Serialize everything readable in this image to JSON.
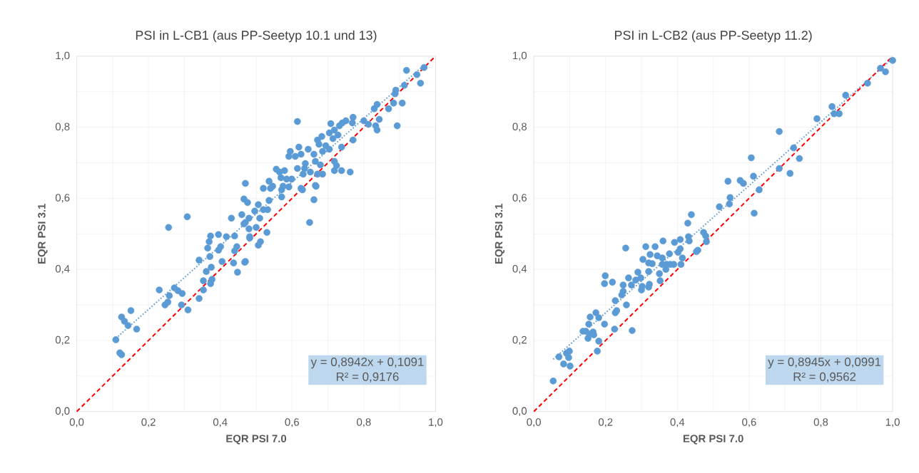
{
  "chart_data": [
    {
      "type": "scatter",
      "title": "PSI in L-CB1 (aus PP-Seetyp 10.1 und 13)",
      "xlabel": "EQR PSI 7.0",
      "ylabel": "EQR PSI 3.1",
      "xlim": [
        0,
        1
      ],
      "ylim": [
        0,
        1
      ],
      "xticks": [
        {
          "value": 0,
          "label": "0,0"
        },
        {
          "value": 0.1,
          "label": null
        },
        {
          "value": 0.2,
          "label": "0,2"
        },
        {
          "value": 0.3,
          "label": null
        },
        {
          "value": 0.4,
          "label": "0,4"
        },
        {
          "value": 0.5,
          "label": null
        },
        {
          "value": 0.6,
          "label": "0,6"
        },
        {
          "value": 0.7,
          "label": null
        },
        {
          "value": 0.8,
          "label": "0,8"
        },
        {
          "value": 0.9,
          "label": null
        },
        {
          "value": 1,
          "label": "1,0"
        }
      ],
      "yticks": [
        {
          "value": 0,
          "label": "0,0"
        },
        {
          "value": 0.1,
          "label": null
        },
        {
          "value": 0.2,
          "label": "0,2"
        },
        {
          "value": 0.3,
          "label": null
        },
        {
          "value": 0.4,
          "label": "0,4"
        },
        {
          "value": 0.5,
          "label": null
        },
        {
          "value": 0.6,
          "label": "0,6"
        },
        {
          "value": 0.7,
          "label": null
        },
        {
          "value": 0.8,
          "label": "0,8"
        },
        {
          "value": 0.9,
          "label": null
        },
        {
          "value": 1,
          "label": "1,0"
        }
      ],
      "grid": true,
      "annotations": [
        "y = 0,8942x + 0,1091",
        "R² = 0,9176"
      ],
      "series": [
        {
          "marker": "circle",
          "color": "#5b9bd5",
          "x": [
            0.109,
            0.12,
            0.125,
            0.125,
            0.133,
            0.143,
            0.151,
            0.167,
            0.256,
            0.308,
            0.23,
            0.246,
            0.254,
            0.258,
            0.272,
            0.282,
            0.294,
            0.292,
            0.31,
            0.341,
            0.341,
            0.353,
            0.353,
            0.361,
            0.373,
            0.377,
            0.375,
            0.371,
            0.365,
            0.369,
            0.373,
            0.395,
            0.395,
            0.401,
            0.405,
            0.417,
            0.431,
            0.44,
            0.437,
            0.448,
            0.468,
            0.446,
            0.44,
            0.46,
            0.466,
            0.476,
            0.496,
            0.482,
            0.5,
            0.506,
            0.47,
            0.48,
            0.919,
            0.968,
            0.948,
            0.958,
            0.889,
            0.887,
            0.913,
            0.907,
            0.883,
            0.869,
            0.893,
            0.837,
            0.829,
            0.843,
            0.833,
            0.837,
            0.813,
            0.8,
            0.615,
            0.77,
            0.768,
            0.75,
            0.74,
            0.732,
            0.708,
            0.718,
            0.704,
            0.728,
            0.714,
            0.77,
            0.683,
            0.671,
            0.675,
            0.694,
            0.704,
            0.738,
            0.619,
            0.595,
            0.625,
            0.645,
            0.661,
            0.685,
            0.591,
            0.609,
            0.665,
            0.679,
            0.718,
            0.724,
            0.637,
            0.615,
            0.635,
            0.651,
            0.671,
            0.685,
            0.718,
            0.738,
            0.762,
            0.631,
            0.556,
            0.565,
            0.579,
            0.569,
            0.585,
            0.599,
            0.536,
            0.546,
            0.575,
            0.591,
            0.47,
            0.52,
            0.625,
            0.665,
            0.54,
            0.571,
            0.629,
            0.667,
            0.661,
            0.649,
            0.571,
            0.536,
            0.506,
            0.52,
            0.532,
            0.51,
            0.466,
            0.48,
            0.53,
            0.482,
            0.512,
            0.47
          ],
          "values": [
            0.202,
            0.165,
            0.16,
            0.266,
            0.254,
            0.242,
            0.284,
            0.232,
            0.518,
            0.548,
            0.342,
            0.3,
            0.308,
            0.326,
            0.348,
            0.34,
            0.332,
            0.3,
            0.286,
            0.426,
            0.318,
            0.368,
            0.342,
            0.394,
            0.36,
            0.372,
            0.406,
            0.436,
            0.46,
            0.478,
            0.494,
            0.498,
            0.454,
            0.464,
            0.422,
            0.492,
            0.544,
            0.494,
            0.418,
            0.392,
            0.42,
            0.464,
            0.452,
            0.554,
            0.598,
            0.588,
            0.564,
            0.492,
            0.518,
            0.468,
            0.532,
            0.544,
            0.96,
            0.968,
            0.948,
            0.924,
            0.904,
            0.894,
            0.918,
            0.868,
            0.868,
            0.852,
            0.804,
            0.864,
            0.852,
            0.822,
            0.804,
            0.792,
            0.808,
            0.818,
            0.816,
            0.828,
            0.812,
            0.818,
            0.812,
            0.804,
            0.81,
            0.792,
            0.784,
            0.778,
            0.768,
            0.764,
            0.774,
            0.764,
            0.752,
            0.748,
            0.738,
            0.744,
            0.744,
            0.732,
            0.724,
            0.738,
            0.724,
            0.732,
            0.718,
            0.718,
            0.704,
            0.694,
            0.704,
            0.692,
            0.698,
            0.684,
            0.684,
            0.674,
            0.668,
            0.668,
            0.678,
            0.678,
            0.674,
            0.668,
            0.682,
            0.674,
            0.678,
            0.658,
            0.654,
            0.654,
            0.648,
            0.634,
            0.634,
            0.632,
            0.642,
            0.628,
            0.628,
            0.636,
            0.628,
            0.624,
            0.624,
            0.634,
            0.596,
            0.532,
            0.604,
            0.594,
            0.582,
            0.568,
            0.568,
            0.544,
            0.528,
            0.514,
            0.504,
            0.488,
            0.478,
            0.422
          ]
        },
        {
          "type": "line",
          "marker": "none",
          "line_style": "dotted",
          "color": "#5b9bd5",
          "x": [
            0.109,
            0.968
          ],
          "values": [
            0.206,
            0.975
          ]
        },
        {
          "type": "line",
          "marker": "none",
          "line_style": "dashed",
          "color": "#ff0000",
          "x": [
            0,
            1
          ],
          "values": [
            0,
            1
          ]
        }
      ]
    },
    {
      "type": "scatter",
      "title": "PSI in L-CB2 (aus PP-Seetyp 11.2)",
      "xlabel": "EQR PSI 7.0",
      "ylabel": "EQR PSI 3.1",
      "xlim": [
        0,
        1
      ],
      "ylim": [
        0,
        1
      ],
      "xticks": [
        {
          "value": 0,
          "label": "0,0"
        },
        {
          "value": 0.1,
          "label": null
        },
        {
          "value": 0.2,
          "label": "0,2"
        },
        {
          "value": 0.3,
          "label": null
        },
        {
          "value": 0.4,
          "label": "0,4"
        },
        {
          "value": 0.5,
          "label": null
        },
        {
          "value": 0.6,
          "label": "0,6"
        },
        {
          "value": 0.7,
          "label": null
        },
        {
          "value": 0.8,
          "label": "0,8"
        },
        {
          "value": 0.9,
          "label": null
        },
        {
          "value": 1,
          "label": "1,0"
        }
      ],
      "yticks": [
        {
          "value": 0,
          "label": "0,0"
        },
        {
          "value": 0.1,
          "label": null
        },
        {
          "value": 0.2,
          "label": "0,2"
        },
        {
          "value": 0.3,
          "label": null
        },
        {
          "value": 0.4,
          "label": "0,4"
        },
        {
          "value": 0.5,
          "label": null
        },
        {
          "value": 0.6,
          "label": "0,6"
        },
        {
          "value": 0.7,
          "label": null
        },
        {
          "value": 0.8,
          "label": "0,8"
        },
        {
          "value": 0.9,
          "label": null
        },
        {
          "value": 1,
          "label": "1,0"
        }
      ],
      "grid": true,
      "annotations": [
        "y = 0,8945x + 0,0991",
        "R² = 0,9562"
      ],
      "series": [
        {
          "marker": "circle",
          "color": "#5b9bd5",
          "x": [
            1.0,
            0.966,
            0.98,
            0.93,
            0.869,
            0.831,
            0.837,
            0.851,
            0.789,
            0.684,
            0.724,
            0.74,
            0.684,
            0.714,
            0.606,
            0.612,
            0.628,
            0.614,
            0.541,
            0.575,
            0.584,
            0.547,
            0.545,
            0.517,
            0.439,
            0.429,
            0.473,
            0.479,
            0.481,
            0.457,
            0.453,
            0.431,
            0.433,
            0.408,
            0.392,
            0.36,
            0.338,
            0.312,
            0.256,
            0.408,
            0.402,
            0.378,
            0.414,
            0.41,
            0.39,
            0.38,
            0.37,
            0.358,
            0.368,
            0.344,
            0.358,
            0.324,
            0.304,
            0.32,
            0.33,
            0.32,
            0.35,
            0.352,
            0.29,
            0.298,
            0.264,
            0.284,
            0.272,
            0.322,
            0.32,
            0.302,
            0.3,
            0.199,
            0.197,
            0.219,
            0.249,
            0.249,
            0.245,
            0.227,
            0.258,
            0.231,
            0.227,
            0.274,
            0.225,
            0.173,
            0.157,
            0.181,
            0.197,
            0.153,
            0.137,
            0.145,
            0.165,
            0.155,
            0.151,
            0.167,
            0.181,
            0.177,
            0.099,
            0.091,
            0.097,
            0.07,
            0.083,
            0.101,
            0.054
          ],
          "values": [
            0.988,
            0.966,
            0.956,
            0.924,
            0.89,
            0.858,
            0.838,
            0.838,
            0.824,
            0.788,
            0.742,
            0.712,
            0.684,
            0.67,
            0.714,
            0.662,
            0.624,
            0.558,
            0.648,
            0.65,
            0.642,
            0.602,
            0.584,
            0.576,
            0.554,
            0.53,
            0.504,
            0.494,
            0.478,
            0.454,
            0.45,
            0.492,
            0.48,
            0.484,
            0.476,
            0.48,
            0.464,
            0.464,
            0.46,
            0.458,
            0.448,
            0.444,
            0.432,
            0.414,
            0.414,
            0.414,
            0.414,
            0.414,
            0.4,
            0.438,
            0.432,
            0.442,
            0.428,
            0.418,
            0.416,
            0.394,
            0.388,
            0.368,
            0.392,
            0.376,
            0.376,
            0.37,
            0.356,
            0.358,
            0.35,
            0.352,
            0.342,
            0.382,
            0.36,
            0.364,
            0.356,
            0.338,
            0.328,
            0.312,
            0.3,
            0.284,
            0.278,
            0.228,
            0.232,
            0.278,
            0.266,
            0.264,
            0.246,
            0.246,
            0.226,
            0.226,
            0.224,
            0.218,
            0.206,
            0.216,
            0.198,
            0.17,
            0.17,
            0.164,
            0.152,
            0.154,
            0.134,
            0.128,
            0.086
          ]
        },
        {
          "type": "line",
          "marker": "none",
          "line_style": "dotted",
          "color": "#5b9bd5",
          "x": [
            0.054,
            1.0
          ],
          "values": [
            0.147,
            0.994
          ]
        },
        {
          "type": "line",
          "marker": "none",
          "line_style": "dashed",
          "color": "#ff0000",
          "x": [
            0,
            1
          ],
          "values": [
            0,
            1
          ]
        }
      ]
    }
  ]
}
